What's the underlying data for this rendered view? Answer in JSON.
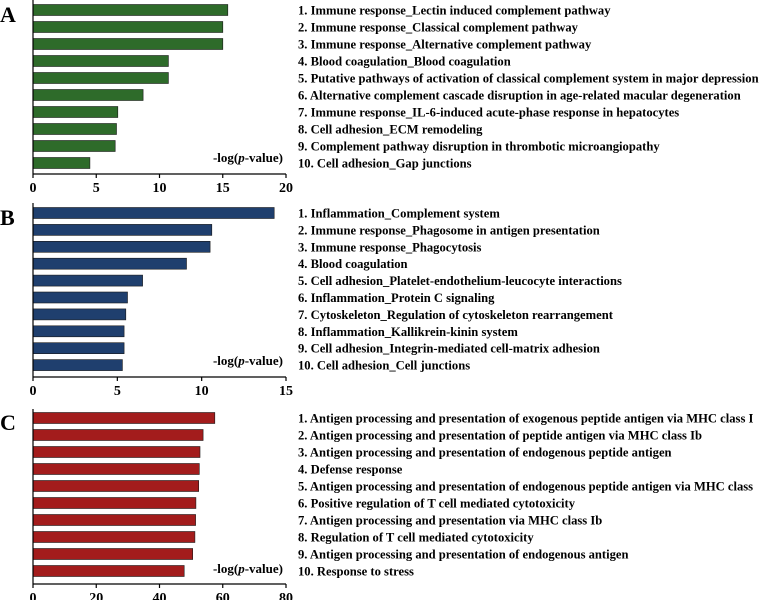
{
  "chart_data": [
    {
      "type": "bar",
      "orientation": "horizontal",
      "panel_label": "A",
      "bar_color": "#2e6b2a",
      "categories": [
        "1. Immune response_Lectin induced complement pathway",
        "2. Immune response_Classical complement pathway",
        "3. Immune response_Alternative complement pathway",
        "4. Blood coagulation_Blood coagulation",
        "5. Putative pathways of activation of classical complement system in major depression",
        "6. Alternative complement cascade disruption in age-related macular degeneration",
        "7. Immune response_IL-6-induced acute-phase response in hepatocytes",
        "8. Cell adhesion_ECM remodeling",
        "9. Complement pathway disruption in thrombotic microangiopathy",
        "10. Cell adhesion_Gap junctions"
      ],
      "values": [
        15.4,
        15.0,
        15.0,
        10.7,
        10.7,
        8.7,
        6.7,
        6.6,
        6.5,
        4.5
      ],
      "xlim": [
        0,
        20
      ],
      "xticks": [
        "0",
        "5",
        "10",
        "15",
        "20"
      ],
      "xlabel_prefix": "-log(",
      "xlabel_italic": "p",
      "xlabel_suffix": "-value)"
    },
    {
      "type": "bar",
      "orientation": "horizontal",
      "panel_label": "B",
      "bar_color": "#1f3f6e",
      "categories": [
        "1. Inflammation_Complement system",
        "2. Immune response_Phagosome in antigen presentation",
        "3. Immune response_Phagocytosis",
        "4. Blood coagulation",
        "5. Cell adhesion_Platelet-endothelium-leucocyte interactions",
        "6. Inflammation_Protein C signaling",
        "7. Cytoskeleton_Regulation of cytoskeleton rearrangement",
        "8. Inflammation_Kallikrein-kinin system",
        "9. Cell adhesion_Integrin-mediated cell-matrix adhesion",
        "10. Cell adhesion_Cell junctions"
      ],
      "values": [
        14.3,
        10.6,
        10.5,
        9.1,
        6.5,
        5.6,
        5.5,
        5.4,
        5.4,
        5.3
      ],
      "xlim": [
        0,
        15
      ],
      "xticks": [
        "0",
        "5",
        "10",
        "15"
      ],
      "xlabel_prefix": "-log(",
      "xlabel_italic": "p",
      "xlabel_suffix": "-value)"
    },
    {
      "type": "bar",
      "orientation": "horizontal",
      "panel_label": "C",
      "bar_color": "#a31c1c",
      "categories": [
        "1. Antigen processing and presentation of exogenous peptide antigen via MHC class I",
        "2. Antigen processing and presentation of peptide antigen via MHC class Ib",
        "3. Antigen processing and presentation of endogenous peptide antigen",
        "4. Defense response",
        "5. Antigen processing and presentation of endogenous peptide antigen via MHC class",
        "6. Positive regulation of T cell mediated cytotoxicity",
        "7. Antigen processing and presentation via MHC class Ib",
        "8. Regulation of T cell mediated cytotoxicity",
        "9. Antigen processing and presentation of endogenous antigen",
        "10. Response to stress"
      ],
      "values": [
        57.5,
        53.8,
        52.8,
        52.6,
        52.4,
        51.5,
        51.4,
        51.2,
        50.5,
        47.8
      ],
      "xlim": [
        0,
        80
      ],
      "xticks": [
        "0",
        "20",
        "40",
        "60",
        "80"
      ],
      "xlabel_prefix": "-log(",
      "xlabel_italic": "p",
      "xlabel_suffix": "-value)"
    }
  ]
}
